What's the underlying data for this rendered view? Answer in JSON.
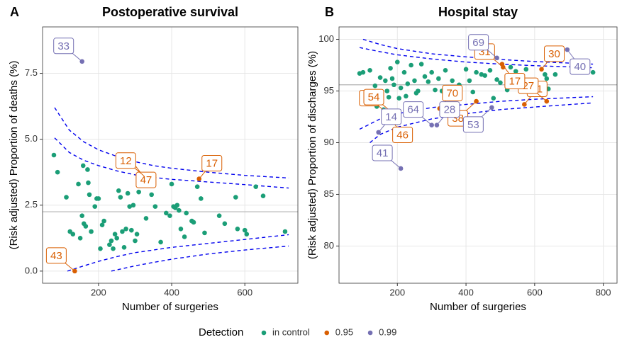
{
  "chart_data": [
    {
      "type": "scatter",
      "panel": "A",
      "title": "Postoperative survival",
      "x_label": "Number of surgeries",
      "y_label": "(Risk adjusted) Proportion of deaths (%)",
      "legend_title": "Detection",
      "xlim": [
        47,
        745
      ],
      "ylim": [
        -0.46,
        9.26
      ],
      "xticks": [
        200,
        400,
        600
      ],
      "yticks": [
        {
          "value": 0,
          "label": "0.0"
        },
        2.5,
        {
          "value": 5,
          "label": "5.0"
        },
        7.5
      ],
      "grid": true,
      "hline": 2.25,
      "hline_color": "#b3b3b3",
      "series": [
        {
          "name": "in control",
          "color": "#1b9e77",
          "x": [
            78,
            88,
            112,
            122,
            130,
            145,
            150,
            155,
            158,
            160,
            165,
            170,
            172,
            175,
            180,
            190,
            195,
            200,
            205,
            210,
            215,
            230,
            235,
            240,
            245,
            250,
            255,
            260,
            265,
            270,
            275,
            280,
            285,
            290,
            295,
            300,
            305,
            310,
            330,
            345,
            355,
            370,
            385,
            395,
            400,
            405,
            410,
            415,
            420,
            425,
            435,
            440,
            455,
            460,
            470,
            480,
            490,
            530,
            545,
            575,
            580,
            600,
            605,
            630,
            650,
            710
          ],
          "values": [
            4.4,
            3.75,
            2.8,
            1.5,
            1.4,
            3.3,
            1.25,
            2.1,
            4.0,
            1.8,
            1.7,
            3.85,
            3.35,
            2.9,
            1.5,
            2.45,
            2.75,
            2.75,
            0.85,
            1.75,
            1.9,
            1.0,
            1.15,
            0.85,
            1.4,
            1.25,
            3.05,
            2.8,
            1.5,
            0.9,
            1.6,
            2.95,
            2.45,
            1.55,
            2.5,
            1.15,
            1.4,
            3.0,
            2.0,
            2.9,
            2.45,
            1.1,
            2.2,
            2.1,
            3.3,
            2.45,
            2.4,
            2.5,
            2.3,
            1.6,
            1.3,
            2.2,
            1.9,
            1.85,
            3.2,
            2.75,
            1.45,
            2.1,
            1.8,
            2.8,
            1.6,
            1.55,
            1.4,
            3.2,
            2.85,
            1.5
          ]
        },
        {
          "name": "0.95",
          "color": "#d95f02",
          "x": [
            135,
            295,
            325,
            475
          ],
          "values": [
            0.0,
            4.1,
            3.6,
            3.5
          ],
          "labels": [
            "43",
            "47",
            "12",
            "17"
          ]
        },
        {
          "name": "0.99",
          "color": "#7570b3",
          "x": [
            155
          ],
          "values": [
            7.95
          ],
          "labels": [
            "33"
          ]
        }
      ],
      "limits": [
        {
          "color": "#0000ee",
          "x": [
            80,
            120,
            160,
            200,
            250,
            300,
            350,
            400,
            500,
            600,
            720
          ],
          "values": [
            6.2,
            5.35,
            4.9,
            4.6,
            4.35,
            4.15,
            4.0,
            3.9,
            3.75,
            3.63,
            3.53
          ]
        },
        {
          "color": "#0000ee",
          "x": [
            80,
            120,
            160,
            200,
            250,
            300,
            350,
            400,
            500,
            600,
            720
          ],
          "values": [
            5.05,
            4.5,
            4.2,
            4.0,
            3.8,
            3.65,
            3.55,
            3.48,
            3.38,
            3.28,
            3.15
          ]
        },
        {
          "color": "#0000ee",
          "x": [
            115,
            160,
            200,
            250,
            300,
            350,
            400,
            500,
            600,
            720
          ],
          "values": [
            0.0,
            0.2,
            0.37,
            0.55,
            0.7,
            0.8,
            0.9,
            1.05,
            1.2,
            1.38
          ]
        },
        {
          "color": "#0000ee",
          "x": [
            235,
            300,
            350,
            400,
            500,
            600,
            720
          ],
          "values": [
            0.0,
            0.2,
            0.33,
            0.45,
            0.65,
            0.8,
            0.95
          ]
        }
      ]
    },
    {
      "type": "scatter",
      "panel": "B",
      "title": "Hospital stay",
      "x_label": "Number of surgeries",
      "y_label": "(Risk adjusted) Proportion of discharges (%)",
      "xlim": [
        30,
        840
      ],
      "ylim": [
        76.4,
        101.2
      ],
      "xticks": [
        200,
        400,
        600,
        800
      ],
      "yticks": [
        80,
        85,
        90,
        95,
        100
      ],
      "grid": true,
      "hline": 95.6,
      "hline_color": "#b3b3b3",
      "series": [
        {
          "color": "#1b9e77",
          "x": [
            90,
            100,
            120,
            135,
            140,
            150,
            160,
            165,
            170,
            175,
            180,
            185,
            190,
            200,
            205,
            210,
            220,
            225,
            230,
            240,
            250,
            255,
            260,
            270,
            280,
            290,
            300,
            310,
            320,
            330,
            340,
            345,
            360,
            380,
            400,
            410,
            420,
            430,
            445,
            455,
            470,
            480,
            490,
            500,
            520,
            530,
            545,
            560,
            575,
            630,
            635,
            640,
            660,
            770
          ],
          "values": [
            96.7,
            96.8,
            97.0,
            95.5,
            93.5,
            96.3,
            93.2,
            96.0,
            95.0,
            94.4,
            97.2,
            96.2,
            95.6,
            97.8,
            94.3,
            95.3,
            96.8,
            94.5,
            95.7,
            97.5,
            96.0,
            94.8,
            95.0,
            97.6,
            96.4,
            95.9,
            96.8,
            95.1,
            96.2,
            95.0,
            97.0,
            94.7,
            96.0,
            95.6,
            97.1,
            96.0,
            94.9,
            96.8,
            96.6,
            96.5,
            97.0,
            94.3,
            96.1,
            95.8,
            95.1,
            97.3,
            96.9,
            95.0,
            97.1,
            96.6,
            96.2,
            95.2,
            96.6,
            96.8
          ]
        },
        {
          "color": "#d95f02",
          "x": [
            172,
            178,
            185,
            323,
            430,
            570,
            635,
            505,
            508,
            620
          ],
          "values": [
            92.8,
            92.4,
            92.9,
            93.3,
            94.0,
            93.7,
            94.0,
            97.6,
            97.3,
            97.1
          ],
          "labels": [
            "62",
            "46",
            "54",
            "70",
            "38",
            "11",
            "27",
            "17",
            "31",
            "30"
          ]
        },
        {
          "color": "#7570b3",
          "x": [
            490,
            695,
            300,
            315,
            475,
            145,
            210
          ],
          "values": [
            98.2,
            99.0,
            91.7,
            91.7,
            93.4,
            91.0,
            87.5
          ],
          "labels": [
            "69",
            "40",
            "64",
            "28",
            "53",
            "14",
            "41"
          ]
        }
      ],
      "limits": [
        {
          "color": "#0000ee",
          "x": [
            100,
            150,
            200,
            300,
            400,
            500,
            600,
            770
          ],
          "values": [
            100.0,
            99.5,
            99.1,
            98.6,
            98.3,
            98.05,
            97.85,
            97.6
          ]
        },
        {
          "color": "#0000ee",
          "x": [
            90,
            150,
            200,
            300,
            400,
            500,
            600,
            770
          ],
          "values": [
            99.2,
            98.8,
            98.5,
            98.1,
            97.8,
            97.6,
            97.45,
            97.25
          ]
        },
        {
          "color": "#0000ee",
          "x": [
            90,
            150,
            200,
            300,
            400,
            500,
            600,
            770
          ],
          "values": [
            91.3,
            92.3,
            92.8,
            93.4,
            93.7,
            94.0,
            94.2,
            94.45
          ]
        },
        {
          "color": "#0000ee",
          "x": [
            120,
            150,
            200,
            300,
            400,
            500,
            600,
            770
          ],
          "values": [
            90.0,
            90.8,
            91.5,
            92.3,
            92.8,
            93.2,
            93.45,
            93.85
          ]
        }
      ]
    }
  ]
}
